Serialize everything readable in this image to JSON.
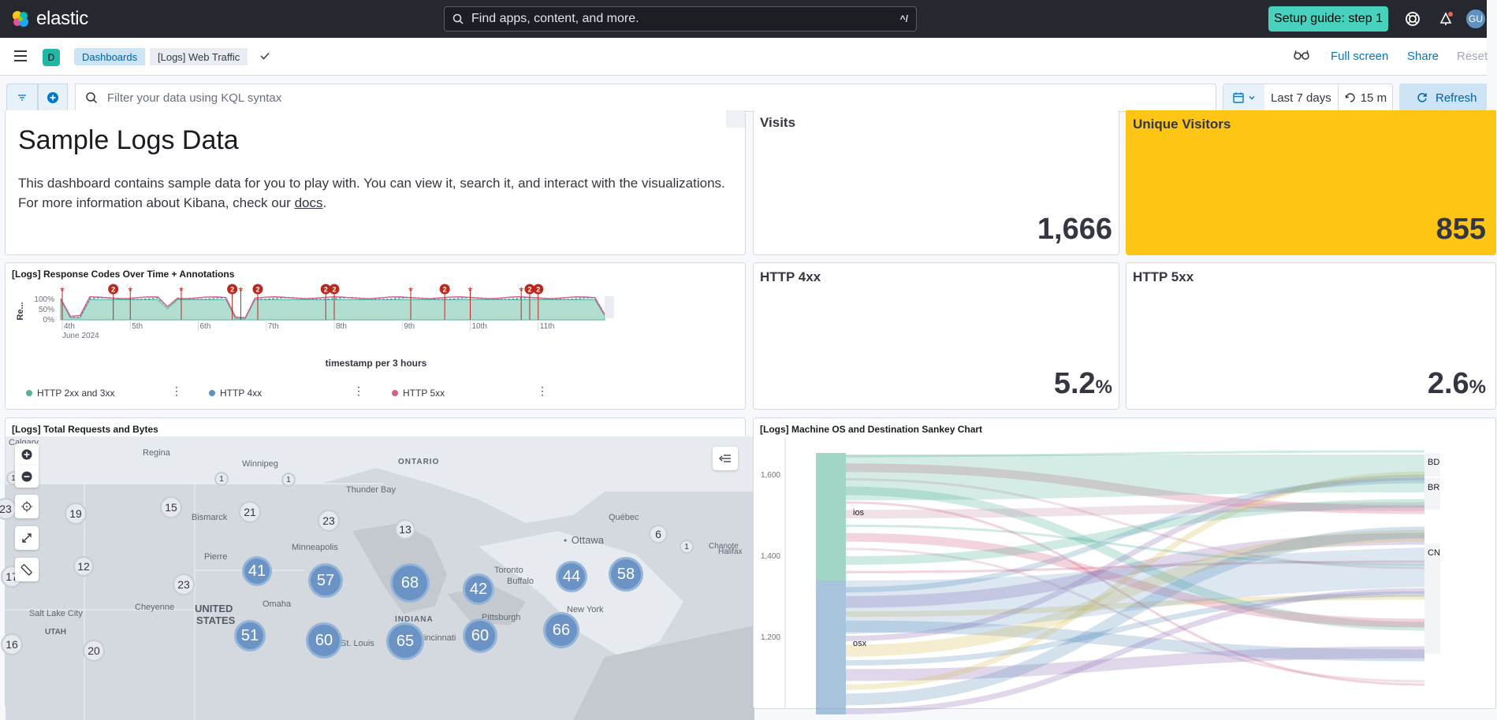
{
  "top": {
    "brand": "elastic",
    "search_placeholder": "Find apps, content, and more.",
    "search_shortcut": "^/",
    "setup_label": "Setup guide: step 1",
    "avatar": "GU"
  },
  "header": {
    "space_badge": "D",
    "breadcrumbs": [
      "Dashboards",
      "[Logs] Web Traffic"
    ],
    "links": [
      "Full screen",
      "Share",
      "Reset"
    ]
  },
  "filter": {
    "kql_placeholder": "Filter your data using KQL syntax",
    "range": "Last 7 days",
    "interval": "15 m",
    "refresh": "Refresh"
  },
  "markdown": {
    "title": "Sample Logs Data",
    "line1": "This dashboard contains sample data for you to play with. You can view it, search it, and interact with the visualizations.",
    "line2_prefix": "For more information about Kibana, check our ",
    "line2_link": "docs",
    "line2_suffix": "."
  },
  "metrics": {
    "visits": {
      "title": "Visits",
      "value": "1,666"
    },
    "unique": {
      "title": "Unique Visitors",
      "value": "855",
      "bg": "#fec514"
    },
    "http4xx": {
      "title": "HTTP 4xx",
      "value": "5.2",
      "unit": "%"
    },
    "http5xx": {
      "title": "HTTP 5xx",
      "value": "2.6",
      "unit": "%"
    }
  },
  "response_chart": {
    "title": "[Logs] Response Codes Over Time + Annotations",
    "xlabel": "timestamp per 3 hours",
    "ylabel": "Re...",
    "legend": [
      {
        "name": "HTTP 2xx and 3xx",
        "color": "#54b399"
      },
      {
        "name": "HTTP 4xx",
        "color": "#6092c0"
      },
      {
        "name": "HTTP 5xx",
        "color": "#d36086"
      }
    ]
  },
  "chart_data": [
    {
      "type": "area",
      "title": "[Logs] Response Codes Over Time + Annotations",
      "xlabel": "timestamp per 3 hours",
      "ylabel": "Re...",
      "x_ticks": [
        "4th",
        "5th",
        "6th",
        "7th",
        "8th",
        "9th",
        "10th",
        "11th"
      ],
      "x_subtitle": "June 2024",
      "y_ticks": [
        "100%",
        "50%",
        "0%"
      ],
      "ylim": [
        0,
        100
      ],
      "stacked_percent": true,
      "series": [
        {
          "name": "HTTP 2xx and 3xx",
          "color": "#54b399"
        },
        {
          "name": "HTTP 4xx",
          "color": "#6092c0"
        },
        {
          "name": "HTTP 5xx",
          "color": "#d36086"
        }
      ],
      "annotations": [
        {
          "x": "4th 00:00",
          "label": "*"
        },
        {
          "x": "4th 18:00",
          "label": "2"
        },
        {
          "x": "5th 00:00",
          "label": "*"
        },
        {
          "x": "5th 18:00",
          "label": "*"
        },
        {
          "x": "6th 12:00",
          "label": "2"
        },
        {
          "x": "6th 15:00",
          "label": "*"
        },
        {
          "x": "6th 21:00",
          "label": "2"
        },
        {
          "x": "7th 21:00",
          "label": "2"
        },
        {
          "x": "8th 00:00",
          "label": "2"
        },
        {
          "x": "9th 03:00",
          "label": "*"
        },
        {
          "x": "9th 15:00",
          "label": "2"
        },
        {
          "x": "10th 00:00",
          "label": "*"
        },
        {
          "x": "10th 18:00",
          "label": "*"
        },
        {
          "x": "10th 21:00",
          "label": "2"
        },
        {
          "x": "11th 00:00",
          "label": "2"
        }
      ]
    },
    {
      "type": "sankey",
      "title": "[Logs] Machine OS and Destination Sankey Chart",
      "y_ticks": [
        "1,600",
        "1,400",
        "1,200"
      ],
      "sources": [
        {
          "name": "ios",
          "color": "#54b399"
        },
        {
          "name": "osx",
          "color": "#6092c0"
        }
      ],
      "targets": [
        "BD",
        "BR",
        "CN"
      ]
    }
  ],
  "map": {
    "title": "[Logs] Total Requests and Bytes",
    "labels": [
      "Calgary",
      "Regina",
      "Winnipeg",
      "ONTARIO",
      "Thunder Bay",
      "Bismarck",
      "Québec",
      "Ottawa",
      "Chanote",
      "Minneapolis",
      "Pierre",
      "Toronto",
      "Buffalo",
      "Halifax",
      "Cheyenne",
      "UNITED",
      "STATES",
      "Omaha",
      "INDIANA",
      "Pittsburgh",
      "New York",
      "Salt Lake City",
      "UTAH",
      "St. Louis",
      "Cincinnati"
    ],
    "big_clusters": [
      "41",
      "57",
      "68",
      "42",
      "44",
      "58",
      "51",
      "60",
      "65",
      "60",
      "66"
    ],
    "small_clusters": [
      "19",
      "15",
      "21",
      "23",
      "13",
      "6",
      "12",
      "23",
      "20",
      "1",
      "1",
      "1",
      "23",
      "17",
      "16",
      "1"
    ]
  },
  "sankey": {
    "title": "[Logs] Machine OS and Destination Sankey Chart",
    "y_ticks": [
      "1,600",
      "1,400",
      "1,200"
    ],
    "sources": [
      "ios",
      "osx"
    ],
    "targets": [
      "BD",
      "BR",
      "CN"
    ]
  }
}
